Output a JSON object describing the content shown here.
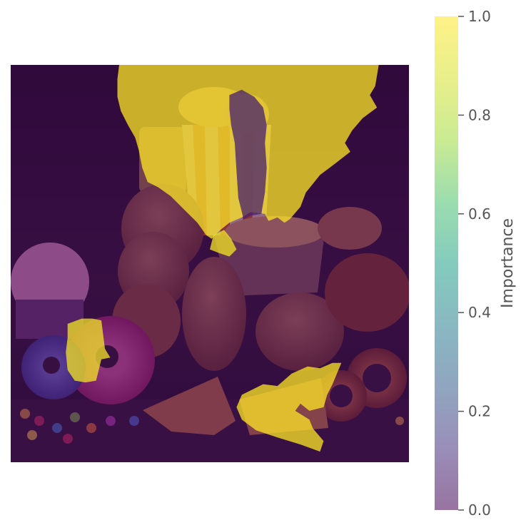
{
  "chart_data": {
    "type": "heatmap",
    "title": "",
    "subtitle": "",
    "description_overlay": "saliency mask over food photograph",
    "colorbar": {
      "label": "Importance",
      "colormap": "viridis",
      "alpha": 0.55,
      "range": [
        0.0,
        1.0
      ],
      "ticks": [
        {
          "value": 0.0,
          "label": "0.0"
        },
        {
          "value": 0.2,
          "label": "0.2"
        },
        {
          "value": 0.4,
          "label": "0.4"
        },
        {
          "value": 0.6,
          "label": "0.6"
        },
        {
          "value": 0.8,
          "label": "0.8"
        },
        {
          "value": 1.0,
          "label": "1.0"
        }
      ]
    },
    "image_grid": {
      "cols": 224,
      "rows": 224
    },
    "regions": [
      {
        "name": "sky-upper-region",
        "importance": 1.0,
        "polygon": [
          [
            61,
            0
          ],
          [
            207,
            0
          ],
          [
            205,
            12
          ],
          [
            202,
            17
          ],
          [
            206,
            24
          ],
          [
            198,
            30
          ],
          [
            192,
            37
          ],
          [
            188,
            44
          ],
          [
            191,
            49
          ],
          [
            182,
            56
          ],
          [
            174,
            62
          ],
          [
            166,
            72
          ],
          [
            163,
            80
          ],
          [
            157,
            87
          ],
          [
            154,
            89
          ],
          [
            150,
            86
          ],
          [
            145,
            88
          ],
          [
            143,
            84
          ],
          [
            135,
            83
          ],
          [
            130,
            86
          ],
          [
            123,
            89
          ],
          [
            118,
            93
          ],
          [
            113,
            98
          ],
          [
            110,
            96
          ],
          [
            105,
            89
          ],
          [
            97,
            81
          ],
          [
            90,
            74
          ],
          [
            83,
            69
          ],
          [
            77,
            66
          ],
          [
            74,
            58
          ],
          [
            72,
            48
          ],
          [
            70,
            41
          ],
          [
            66,
            34
          ],
          [
            62,
            26
          ],
          [
            60,
            18
          ],
          [
            60,
            8
          ]
        ]
      },
      {
        "name": "fries-bucket-right-region",
        "importance": 0.08,
        "polygon": [
          [
            123,
            17
          ],
          [
            130,
            14
          ],
          [
            137,
            18
          ],
          [
            142,
            24
          ],
          [
            144,
            34
          ],
          [
            143,
            44
          ],
          [
            144,
            58
          ],
          [
            143,
            72
          ],
          [
            141,
            84
          ],
          [
            135,
            85
          ],
          [
            131,
            87
          ],
          [
            128,
            75
          ],
          [
            127,
            60
          ],
          [
            126,
            44
          ],
          [
            124,
            34
          ],
          [
            123,
            25
          ]
        ]
      },
      {
        "name": "donut-left-region",
        "importance": 0.97,
        "polygon": [
          [
            32,
            146
          ],
          [
            40,
            143
          ],
          [
            46,
            143
          ],
          [
            51,
            144
          ],
          [
            52,
            152
          ],
          [
            53,
            160
          ],
          [
            56,
            165
          ],
          [
            51,
            166
          ],
          [
            49,
            174
          ],
          [
            48,
            178
          ],
          [
            42,
            179
          ],
          [
            36,
            178
          ],
          [
            32,
            172
          ],
          [
            31,
            162
          ],
          [
            32,
            154
          ]
        ]
      },
      {
        "name": "fries-small-region",
        "importance": 0.97,
        "polygon": [
          [
            114,
            96
          ],
          [
            120,
            93
          ],
          [
            124,
            98
          ],
          [
            127,
            104
          ],
          [
            123,
            108
          ],
          [
            117,
            106
          ],
          [
            112,
            104
          ]
        ]
      },
      {
        "name": "pizza-lower-region",
        "importance": 1.0,
        "polygon": [
          [
            130,
            186
          ],
          [
            142,
            180
          ],
          [
            150,
            181
          ],
          [
            158,
            174
          ],
          [
            167,
            170
          ],
          [
            174,
            171
          ],
          [
            181,
            168
          ],
          [
            186,
            168
          ],
          [
            181,
            180
          ],
          [
            178,
            186
          ],
          [
            176,
            193
          ],
          [
            168,
            195
          ],
          [
            163,
            191
          ],
          [
            160,
            195
          ],
          [
            168,
            200
          ],
          [
            170,
            205
          ],
          [
            176,
            212
          ],
          [
            174,
            218
          ],
          [
            163,
            214
          ],
          [
            150,
            210
          ],
          [
            138,
            206
          ],
          [
            130,
            200
          ],
          [
            127,
            193
          ]
        ]
      }
    ]
  }
}
